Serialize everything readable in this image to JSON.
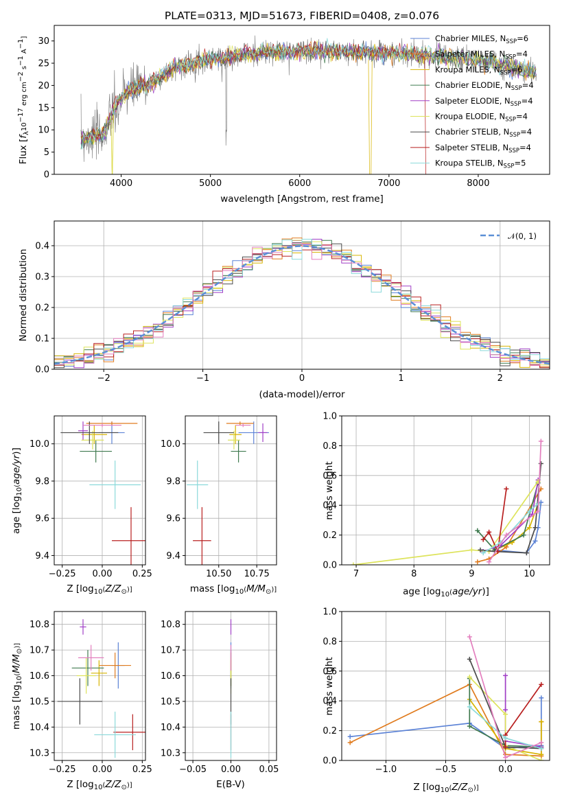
{
  "figure": {
    "title": "PLATE=0313, MJD=51673, FIBERID=0408, z=0.076"
  },
  "colors": {
    "Chabrier MILES": "#5b82d6",
    "Salpeter MILES": "#e07b1e",
    "Kroupa MILES": "#d7b400",
    "Chabrier ELODIE": "#3f7a4f",
    "Salpeter ELODIE": "#a03ec6",
    "Kroupa ELODIE": "#dde35a",
    "Chabrier STELIB": "#4a4a4a",
    "Salpeter STELIB": "#b81f1f",
    "Kroupa STELIB": "#8ad9da",
    "pink": "#e37fbe"
  },
  "chart_data": [
    {
      "type": "line",
      "title": "PLATE=0313, MJD=51673, FIBERID=0408, z=0.076",
      "xlabel": "wavelength [Angstrom, rest frame]",
      "ylabel": "Flux [f_λ10^-17 erg cm^-2 s^-1 A^-1]",
      "xlim": [
        3250,
        8800
      ],
      "ylim": [
        0,
        33.5
      ],
      "xticks": [
        4000,
        5000,
        6000,
        7000,
        8000
      ],
      "yticks": [
        0,
        5,
        10,
        15,
        20,
        25,
        30
      ],
      "legend_position": "upper-right",
      "grid": false,
      "spectrum_anchors": {
        "wavelength": [
          3550,
          3800,
          3950,
          4100,
          4300,
          4600,
          5000,
          5400,
          5800,
          6200,
          6600,
          7000,
          7400,
          7800,
          8200,
          8600
        ],
        "flux": [
          8,
          9,
          16,
          19,
          20,
          24,
          26,
          27,
          27.5,
          27.8,
          27.5,
          27.2,
          26.8,
          26.2,
          25,
          23
        ]
      },
      "series": [
        {
          "name": "Chabrier MILES, N_SSP=6",
          "legend": "Chabrier MILES, N",
          "sub": "SSP",
          "suffix": "=6"
        },
        {
          "name": "Salpeter MILES, N_SSP=4",
          "legend": "Salpeter MILES, N",
          "sub": "SSP",
          "suffix": "=4"
        },
        {
          "name": "Kroupa MILES, N_SSP=6",
          "legend": "Kroupa MILES, N",
          "sub": "SSP",
          "suffix": "=6"
        },
        {
          "name": "Chabrier ELODIE, N_SSP=4",
          "legend": "Chabrier ELODIE, N",
          "sub": "SSP",
          "suffix": "=4"
        },
        {
          "name": "Salpeter ELODIE, N_SSP=4",
          "legend": "Salpeter ELODIE, N",
          "sub": "SSP",
          "suffix": "=4"
        },
        {
          "name": "Kroupa ELODIE, N_SSP=4",
          "legend": "Kroupa ELODIE, N",
          "sub": "SSP",
          "suffix": "=4"
        },
        {
          "name": "Chabrier STELIB, N_SSP=4",
          "legend": "Chabrier STELIB, N",
          "sub": "SSP",
          "suffix": "=4"
        },
        {
          "name": "Salpeter STELIB, N_SSP=4",
          "legend": "Salpeter STELIB, N",
          "sub": "SSP",
          "suffix": "=4"
        },
        {
          "name": "Kroupa STELIB, N_SSP=5",
          "legend": "Kroupa STELIB, N",
          "sub": "SSP",
          "suffix": "=5"
        }
      ]
    },
    {
      "type": "line",
      "xlabel": "(data-model)/error",
      "ylabel": "Normed distribution",
      "xlim": [
        -2.5,
        2.5
      ],
      "ylim": [
        0,
        0.48
      ],
      "xticks": [
        -2,
        -1,
        0,
        1,
        2
      ],
      "yticks": [
        0.0,
        0.1,
        0.2,
        0.3,
        0.4
      ],
      "grid": true,
      "legend": {
        "label": "𝒩(0, 1)",
        "position": "upper-right"
      },
      "bin_width": 0.1,
      "series": [
        {
          "name": "N(0,1)",
          "style": "dashed",
          "color": "#5b8fd6"
        }
      ]
    },
    {
      "type": "scatter",
      "xlabel": "Z [log10(Z/Z⊙)]",
      "ylabel": "age [log10(age/yr)]",
      "xlim": [
        -0.3,
        0.27
      ],
      "ylim": [
        9.35,
        10.15
      ],
      "xticks": [
        -0.25,
        0.0,
        0.25
      ],
      "yticks": [
        9.4,
        9.6,
        9.8,
        10.0
      ],
      "grid": true,
      "points": [
        {
          "c": "Chabrier MILES",
          "x": 0.06,
          "xe": 0.08,
          "y": 10.06,
          "ye": 0.06
        },
        {
          "c": "Salpeter MILES",
          "x": 0.06,
          "xe": 0.16,
          "y": 10.11,
          "ye": 0.01
        },
        {
          "c": "Kroupa MILES",
          "x": -0.05,
          "xe": 0.08,
          "y": 10.05,
          "ye": 0.05
        },
        {
          "c": "Chabrier ELODIE",
          "x": -0.04,
          "xe": 0.1,
          "y": 9.96,
          "ye": 0.06
        },
        {
          "c": "Salpeter ELODIE",
          "x": -0.12,
          "xe": 0.03,
          "y": 10.07,
          "ye": 0.05
        },
        {
          "c": "Kroupa ELODIE",
          "x": -0.06,
          "xe": 0.07,
          "y": 10.02,
          "ye": 0.05
        },
        {
          "c": "Chabrier STELIB",
          "x": -0.08,
          "xe": 0.18,
          "y": 10.06,
          "ye": 0.06
        },
        {
          "c": "Salpeter STELIB",
          "x": 0.18,
          "xe": 0.12,
          "y": 9.48,
          "ye": 0.18
        },
        {
          "c": "Kroupa STELIB",
          "x": 0.08,
          "xe": 0.16,
          "y": 9.78,
          "ye": 0.13
        },
        {
          "c": "pink",
          "x": 0.0,
          "xe": 0.12,
          "y": 10.1,
          "ye": 0.01
        }
      ]
    },
    {
      "type": "scatter",
      "xlabel": "mass [log10(M/M⊙)]",
      "ylabel": "",
      "xlim": [
        10.28,
        10.88
      ],
      "ylim": [
        9.35,
        10.15
      ],
      "xticks": [
        10.5,
        10.75
      ],
      "xticklabels": [
        "10.50",
        "10.75"
      ],
      "yticks": [
        9.4,
        9.6,
        9.8,
        10.0
      ],
      "grid": true,
      "points": [
        {
          "c": "Chabrier MILES",
          "x": 10.73,
          "xe": 0.1,
          "y": 10.06,
          "ye": 0.06
        },
        {
          "c": "Salpeter MILES",
          "x": 10.64,
          "xe": 0.09,
          "y": 10.11,
          "ye": 0.01
        },
        {
          "c": "Kroupa MILES",
          "x": 10.61,
          "xe": 0.04,
          "y": 10.05,
          "ye": 0.05
        },
        {
          "c": "Chabrier ELODIE",
          "x": 10.63,
          "xe": 0.05,
          "y": 9.96,
          "ye": 0.06
        },
        {
          "c": "Salpeter ELODIE",
          "x": 10.79,
          "xe": 0.03,
          "y": 10.06,
          "ye": 0.05
        },
        {
          "c": "Kroupa ELODIE",
          "x": 10.6,
          "xe": 0.04,
          "y": 10.02,
          "ye": 0.05
        },
        {
          "c": "Chabrier STELIB",
          "x": 10.5,
          "xe": 0.1,
          "y": 10.06,
          "ye": 0.06
        },
        {
          "c": "Salpeter STELIB",
          "x": 10.39,
          "xe": 0.06,
          "y": 9.48,
          "ye": 0.18
        },
        {
          "c": "Kroupa STELIB",
          "x": 10.36,
          "xe": 0.07,
          "y": 9.78,
          "ye": 0.13
        },
        {
          "c": "pink",
          "x": 10.66,
          "xe": 0.05,
          "y": 10.1,
          "ye": 0.01
        }
      ]
    },
    {
      "type": "line",
      "xlabel": "age [log10(age/yr)]",
      "ylabel": "mass weight",
      "xlim": [
        6.75,
        10.35
      ],
      "ylim": [
        0,
        1.0
      ],
      "xticks": [
        7,
        8,
        9,
        10
      ],
      "yticks": [
        0.0,
        0.2,
        0.4,
        0.6,
        0.8,
        1.0
      ],
      "grid": true,
      "series": [
        {
          "c": "Chabrier MILES",
          "x": [
            9.4,
            9.95,
            10.1,
            10.15,
            10.2
          ],
          "y": [
            0.1,
            0.08,
            0.16,
            0.25,
            0.42
          ]
        },
        {
          "c": "Salpeter MILES",
          "x": [
            9.1,
            9.3,
            9.6,
            10.2
          ],
          "y": [
            0.02,
            0.04,
            0.12,
            0.51
          ]
        },
        {
          "c": "Kroupa MILES",
          "x": [
            9.4,
            9.7,
            10.0,
            10.15
          ],
          "y": [
            0.1,
            0.15,
            0.25,
            0.41
          ]
        },
        {
          "c": "Chabrier ELODIE",
          "x": [
            9.1,
            9.4,
            9.9,
            10.15
          ],
          "y": [
            0.23,
            0.1,
            0.2,
            0.55
          ]
        },
        {
          "c": "Salpeter ELODIE",
          "x": [
            9.2,
            9.5,
            10.05,
            10.15
          ],
          "y": [
            0.09,
            0.13,
            0.34,
            0.57
          ]
        },
        {
          "c": "Kroupa ELODIE",
          "x": [
            6.95,
            9.0,
            9.3,
            10.15
          ],
          "y": [
            0.0,
            0.1,
            0.09,
            0.56
          ]
        },
        {
          "c": "Chabrier STELIB",
          "x": [
            9.15,
            9.4,
            9.95,
            10.1,
            10.2
          ],
          "y": [
            0.1,
            0.09,
            0.08,
            0.25,
            0.68
          ]
        },
        {
          "c": "Salpeter STELIB",
          "x": [
            9.2,
            9.3,
            9.45,
            9.6
          ],
          "y": [
            0.17,
            0.22,
            0.09,
            0.51
          ]
        },
        {
          "c": "Kroupa STELIB",
          "x": [
            9.2,
            9.5,
            10.0,
            10.15
          ],
          "y": [
            0.08,
            0.15,
            0.36,
            0.41
          ]
        },
        {
          "c": "pink",
          "x": [
            9.3,
            9.6,
            10.15,
            10.2
          ],
          "y": [
            0.02,
            0.2,
            0.36,
            0.83
          ]
        }
      ]
    },
    {
      "type": "scatter",
      "xlabel": "Z [log10(Z/Z⊙)]",
      "ylabel": "mass [log10(M/M⊙)]",
      "xlim": [
        -0.3,
        0.27
      ],
      "ylim": [
        10.27,
        10.85
      ],
      "xticks": [
        -0.25,
        0.0,
        0.25
      ],
      "yticks": [
        10.3,
        10.4,
        10.5,
        10.6,
        10.7,
        10.8
      ],
      "grid": true,
      "points": [
        {
          "c": "Chabrier MILES",
          "x": 0.1,
          "xe": 0.04,
          "y": 10.64,
          "ye": 0.09
        },
        {
          "c": "Salpeter MILES",
          "x": 0.08,
          "xe": 0.1,
          "y": 10.64,
          "ye": 0.05
        },
        {
          "c": "Kroupa MILES",
          "x": -0.02,
          "xe": 0.05,
          "y": 10.61,
          "ye": 0.05
        },
        {
          "c": "Chabrier ELODIE",
          "x": -0.09,
          "xe": 0.1,
          "y": 10.63,
          "ye": 0.07
        },
        {
          "c": "Salpeter ELODIE",
          "x": -0.12,
          "xe": 0.02,
          "y": 10.79,
          "ye": 0.03
        },
        {
          "c": "Kroupa ELODIE",
          "x": -0.1,
          "xe": 0.06,
          "y": 10.6,
          "ye": 0.07
        },
        {
          "c": "Chabrier STELIB",
          "x": -0.14,
          "xe": 0.14,
          "y": 10.5,
          "ye": 0.09
        },
        {
          "c": "Salpeter STELIB",
          "x": 0.19,
          "xe": 0.12,
          "y": 10.38,
          "ye": 0.07
        },
        {
          "c": "Kroupa STELIB",
          "x": 0.08,
          "xe": 0.13,
          "y": 10.37,
          "ye": 0.09
        },
        {
          "c": "pink",
          "x": -0.07,
          "xe": 0.08,
          "y": 10.67,
          "ye": 0.05
        }
      ]
    },
    {
      "type": "scatter",
      "xlabel": "E(B-V)",
      "ylabel": "",
      "xlim": [
        -0.06,
        0.06
      ],
      "ylim": [
        10.27,
        10.85
      ],
      "xticks": [
        -0.05,
        0.0,
        0.05
      ],
      "xticklabels": [
        "−0.05",
        "0.00",
        "0.05"
      ],
      "yticks": [
        10.3,
        10.4,
        10.5,
        10.6,
        10.7,
        10.8
      ],
      "grid": true,
      "points": [
        {
          "c": "Chabrier MILES",
          "x": 0.0,
          "y": 10.64,
          "ye": 0.09
        },
        {
          "c": "Salpeter MILES",
          "x": 0.0,
          "y": 10.64,
          "ye": 0.05
        },
        {
          "c": "Kroupa MILES",
          "x": 0.0,
          "y": 10.61,
          "ye": 0.05
        },
        {
          "c": "Chabrier ELODIE",
          "x": 0.0,
          "y": 10.63,
          "ye": 0.07
        },
        {
          "c": "Salpeter ELODIE",
          "x": 0.0,
          "y": 10.79,
          "ye": 0.03
        },
        {
          "c": "Kroupa ELODIE",
          "x": 0.0,
          "y": 10.6,
          "ye": 0.07
        },
        {
          "c": "Chabrier STELIB",
          "x": 0.0,
          "y": 10.5,
          "ye": 0.09
        },
        {
          "c": "Salpeter STELIB",
          "x": 0.0,
          "y": 10.38,
          "ye": 0.07
        },
        {
          "c": "Kroupa STELIB",
          "x": 0.0,
          "y": 10.37,
          "ye": 0.09
        },
        {
          "c": "pink",
          "x": 0.0,
          "y": 10.67,
          "ye": 0.05
        }
      ]
    },
    {
      "type": "line",
      "xlabel": "Z [log10(Z/Z⊙)]",
      "ylabel": "mass weight",
      "xlim": [
        -1.37,
        0.37
      ],
      "ylim": [
        0,
        1.0
      ],
      "xticks": [
        -1.0,
        -0.5,
        0.0
      ],
      "xticklabels": [
        "−1.0",
        "−0.5",
        "0.0"
      ],
      "yticks": [
        0.0,
        0.2,
        0.4,
        0.6,
        0.8,
        1.0
      ],
      "grid": true,
      "series": [
        {
          "c": "Chabrier MILES",
          "x": [
            -1.3,
            -0.3,
            0.0,
            0.3,
            0.3
          ],
          "y": [
            0.16,
            0.25,
            0.08,
            0.1,
            0.42
          ]
        },
        {
          "c": "Salpeter MILES",
          "x": [
            -1.3,
            -0.3,
            0.0,
            0.3,
            0.3
          ],
          "y": [
            0.12,
            0.51,
            0.04,
            0.03,
            0.26
          ]
        },
        {
          "c": "Kroupa MILES",
          "x": [
            -0.3,
            0.0,
            0.3,
            0.3
          ],
          "y": [
            0.41,
            0.08,
            0.04,
            0.26
          ]
        },
        {
          "c": "Chabrier ELODIE",
          "x": [
            -0.3,
            -0.3,
            0.0,
            0.3
          ],
          "y": [
            0.55,
            0.23,
            0.1,
            0.09
          ]
        },
        {
          "c": "Salpeter ELODIE",
          "x": [
            0.0,
            0.0,
            0.0,
            0.3
          ],
          "y": [
            0.57,
            0.34,
            0.13,
            0.09
          ]
        },
        {
          "c": "Kroupa ELODIE",
          "x": [
            -0.3,
            0.0,
            0.0,
            0.3
          ],
          "y": [
            0.56,
            0.31,
            0.1,
            0.0
          ]
        },
        {
          "c": "Chabrier STELIB",
          "x": [
            -0.3,
            0.0,
            0.3
          ],
          "y": [
            0.68,
            0.09,
            0.08
          ]
        },
        {
          "c": "Salpeter STELIB",
          "x": [
            0.0,
            0.0,
            0.3
          ],
          "y": [
            0.09,
            0.17,
            0.51
          ]
        },
        {
          "c": "Kroupa STELIB",
          "x": [
            -0.3,
            0.0,
            0.3
          ],
          "y": [
            0.36,
            0.15,
            0.08
          ]
        },
        {
          "c": "pink",
          "x": [
            -0.3,
            0.0,
            0.3
          ],
          "y": [
            0.83,
            0.02,
            0.12
          ]
        }
      ]
    }
  ]
}
